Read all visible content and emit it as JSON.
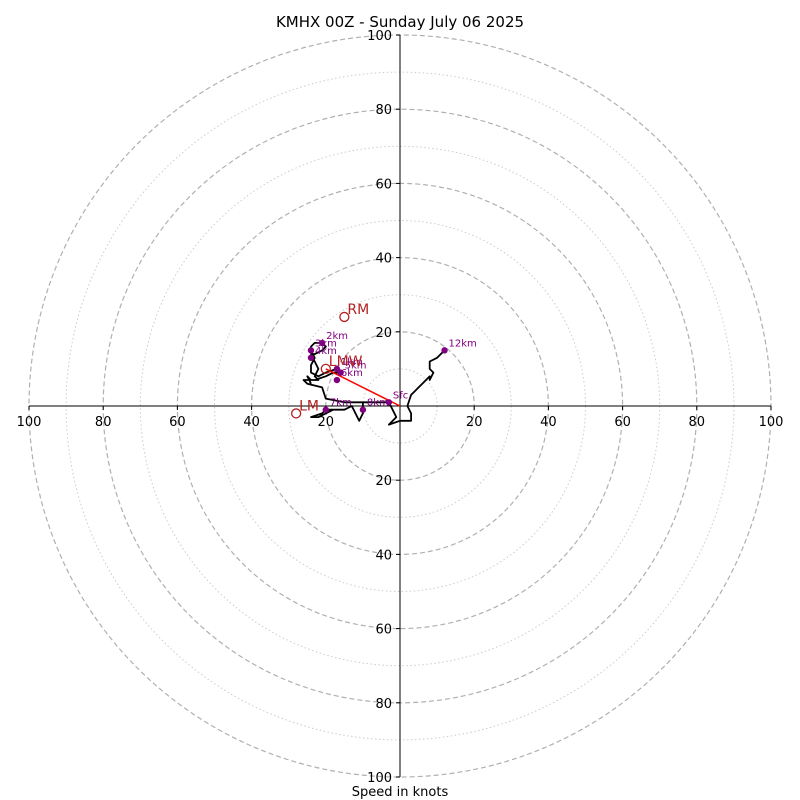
{
  "chart_data": {
    "type": "scatter",
    "subtype": "hodograph",
    "title": "KMHX 00Z - Sunday July 06 2025",
    "xlabel": "Speed in knots",
    "ylabel": "",
    "xlim": [
      -100,
      100
    ],
    "ylim": [
      -100,
      100
    ],
    "grid": true,
    "rings_major": [
      20,
      40,
      60,
      80,
      100
    ],
    "rings_minor": [
      10,
      30,
      50,
      70,
      90
    ],
    "ticks": {
      "left": [
        "100",
        "80",
        "60",
        "40",
        "20"
      ],
      "right": [
        "20",
        "40",
        "60",
        "80",
        "100"
      ],
      "top": [
        "20",
        "40",
        "60",
        "80",
        "100"
      ],
      "bottom": [
        "20",
        "40",
        "60",
        "80",
        "100"
      ]
    },
    "tick_values": [
      20,
      40,
      60,
      80,
      100
    ],
    "hodograph_trace": {
      "color": "#000000",
      "points": [
        [
          -3,
          1
        ],
        [
          -1,
          -3
        ],
        [
          -3,
          -5
        ],
        [
          0,
          -4
        ],
        [
          3,
          -4
        ],
        [
          3,
          -2
        ],
        [
          2,
          0
        ],
        [
          3,
          3
        ],
        [
          4,
          4
        ],
        [
          5,
          5
        ],
        [
          6,
          6
        ],
        [
          7,
          7
        ],
        [
          8,
          8
        ],
        [
          8,
          7
        ],
        [
          9,
          9
        ],
        [
          8,
          10
        ],
        [
          8,
          12
        ],
        [
          10,
          13
        ],
        [
          12,
          15
        ]
      ]
    },
    "hodograph_trace_low": {
      "color": "#000000",
      "points": [
        [
          -3,
          1
        ],
        [
          -5,
          1
        ],
        [
          -8,
          1
        ],
        [
          -12,
          1
        ],
        [
          -15,
          1
        ],
        [
          -20,
          2
        ],
        [
          -21,
          5
        ],
        [
          -25,
          6
        ],
        [
          -26,
          7
        ],
        [
          -23,
          7
        ],
        [
          -20,
          8
        ],
        [
          -18,
          9
        ],
        [
          -16,
          9
        ],
        [
          -17,
          10
        ],
        [
          -20,
          9
        ],
        [
          -22,
          8
        ],
        [
          -24,
          9
        ],
        [
          -24,
          11
        ],
        [
          -23,
          13
        ],
        [
          -24,
          15
        ],
        [
          -24,
          16
        ],
        [
          -23,
          17
        ],
        [
          -21,
          17
        ],
        [
          -20,
          16
        ],
        [
          -21,
          15
        ],
        [
          -23,
          14
        ],
        [
          -24,
          14
        ],
        [
          -23,
          12
        ],
        [
          -22,
          10
        ],
        [
          -23,
          8
        ],
        [
          -22,
          7
        ],
        [
          -24,
          7
        ],
        [
          -25,
          8
        ],
        [
          -24,
          6
        ]
      ]
    },
    "hodograph_trace_mid": {
      "color": "#000000",
      "points": [
        [
          -10,
          1
        ],
        [
          -10,
          -2
        ],
        [
          -11,
          -4
        ],
        [
          -13,
          0
        ],
        [
          -15,
          -1
        ],
        [
          -18,
          -1
        ],
        [
          -20,
          -2
        ],
        [
          -22,
          -3
        ],
        [
          -24,
          -3
        ],
        [
          -21,
          -2
        ],
        [
          -20,
          -1
        ],
        [
          -17,
          -1
        ]
      ]
    },
    "height_points": [
      {
        "label": "Sfc",
        "x": -3,
        "y": 1
      },
      {
        "label": "1km",
        "x": -17,
        "y": 10
      },
      {
        "label": "2km",
        "x": -21,
        "y": 17
      },
      {
        "label": "3km",
        "x": -24,
        "y": 15
      },
      {
        "label": "4km",
        "x": -24,
        "y": 13
      },
      {
        "label": "5km",
        "x": -16,
        "y": 9
      },
      {
        "label": "6km",
        "x": -17,
        "y": 7
      },
      {
        "label": "7km",
        "x": -20,
        "y": -1
      },
      {
        "label": "8km",
        "x": -10,
        "y": -1
      },
      {
        "label": "12km",
        "x": 12,
        "y": 15
      }
    ],
    "storm_motion": [
      {
        "label": "RM",
        "x": -15,
        "y": 24
      },
      {
        "label": "LMW",
        "x": -20,
        "y": 10
      },
      {
        "label": "LM",
        "x": -28,
        "y": -2
      }
    ],
    "shear_vector": {
      "from": [
        -20,
        10
      ],
      "to": [
        0,
        0
      ],
      "color": "#ff0000"
    },
    "colors": {
      "trace": "#000000",
      "points": "#800080",
      "motion": "#b22222",
      "shear": "#ff0000",
      "grid": "#b0b0b0"
    }
  }
}
